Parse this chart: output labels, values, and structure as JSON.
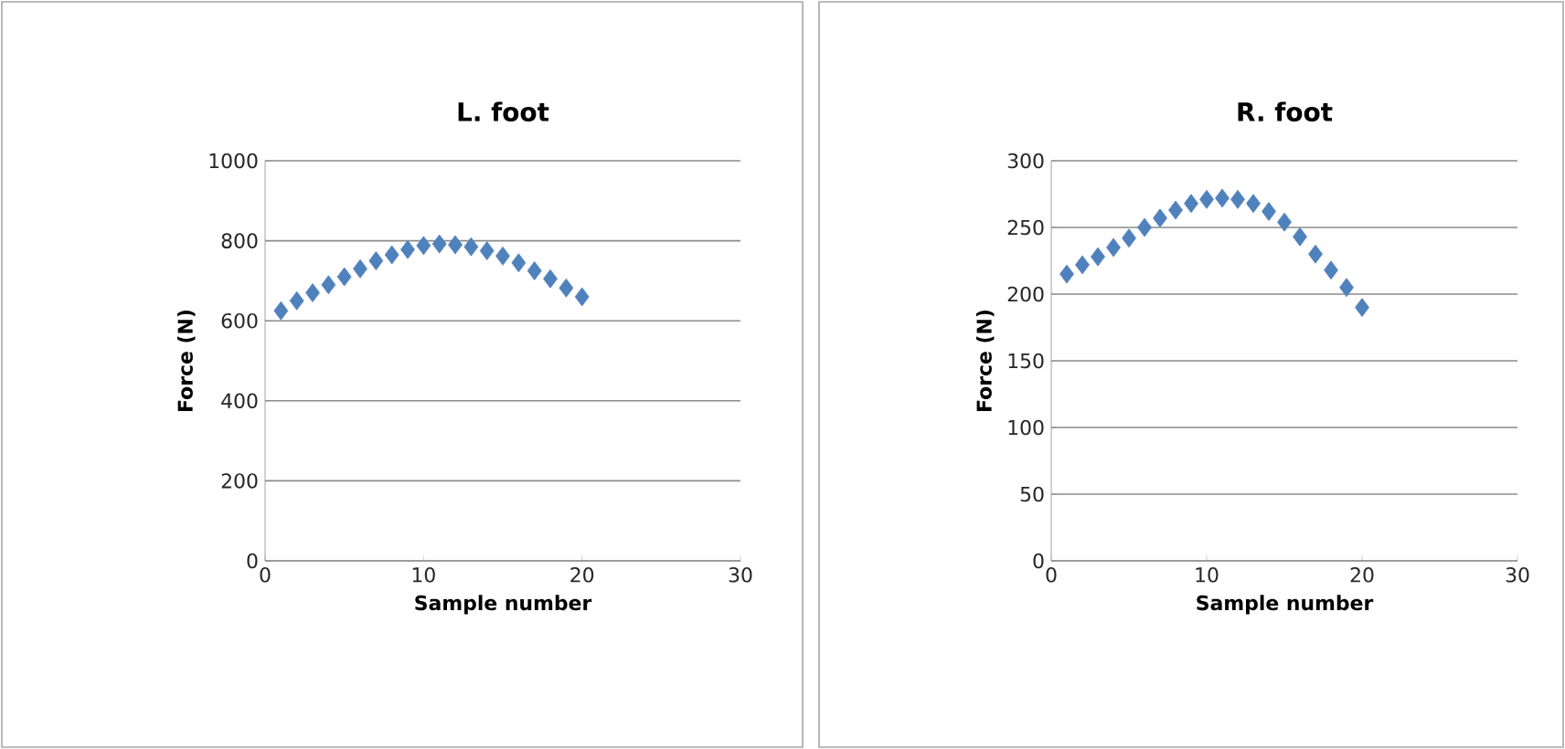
{
  "chart_data": [
    {
      "type": "scatter",
      "title": "L. foot",
      "xlabel": "Sample number",
      "ylabel": "Force (N)",
      "x": [
        1,
        2,
        3,
        4,
        5,
        6,
        7,
        8,
        9,
        10,
        11,
        12,
        13,
        14,
        15,
        16,
        17,
        18,
        19,
        20
      ],
      "series": [
        {
          "color": "#4f81bd",
          "values": [
            625,
            650,
            670,
            690,
            710,
            730,
            750,
            765,
            778,
            788,
            792,
            790,
            785,
            775,
            762,
            745,
            725,
            705,
            682,
            660
          ]
        }
      ],
      "xlim": [
        0,
        30
      ],
      "xticks": [
        0,
        10,
        20,
        30
      ],
      "ylim": [
        0,
        1000
      ],
      "yticks": [
        0,
        200,
        400,
        600,
        800,
        1000
      ],
      "grid": "y",
      "marker": "diamond"
    },
    {
      "type": "scatter",
      "title": "R. foot",
      "xlabel": "Sample number",
      "ylabel": "Force (N)",
      "x": [
        1,
        2,
        3,
        4,
        5,
        6,
        7,
        8,
        9,
        10,
        11,
        12,
        13,
        14,
        15,
        16,
        17,
        18,
        19,
        20
      ],
      "series": [
        {
          "color": "#4f81bd",
          "values": [
            215,
            222,
            228,
            235,
            242,
            250,
            257,
            263,
            268,
            271,
            272,
            271,
            268,
            262,
            254,
            243,
            230,
            218,
            205,
            190
          ]
        }
      ],
      "xlim": [
        0,
        30
      ],
      "xticks": [
        0,
        10,
        20,
        30
      ],
      "ylim": [
        0,
        300
      ],
      "yticks": [
        0,
        50,
        100,
        150,
        200,
        250,
        300
      ],
      "grid": "y",
      "marker": "diamond"
    }
  ]
}
